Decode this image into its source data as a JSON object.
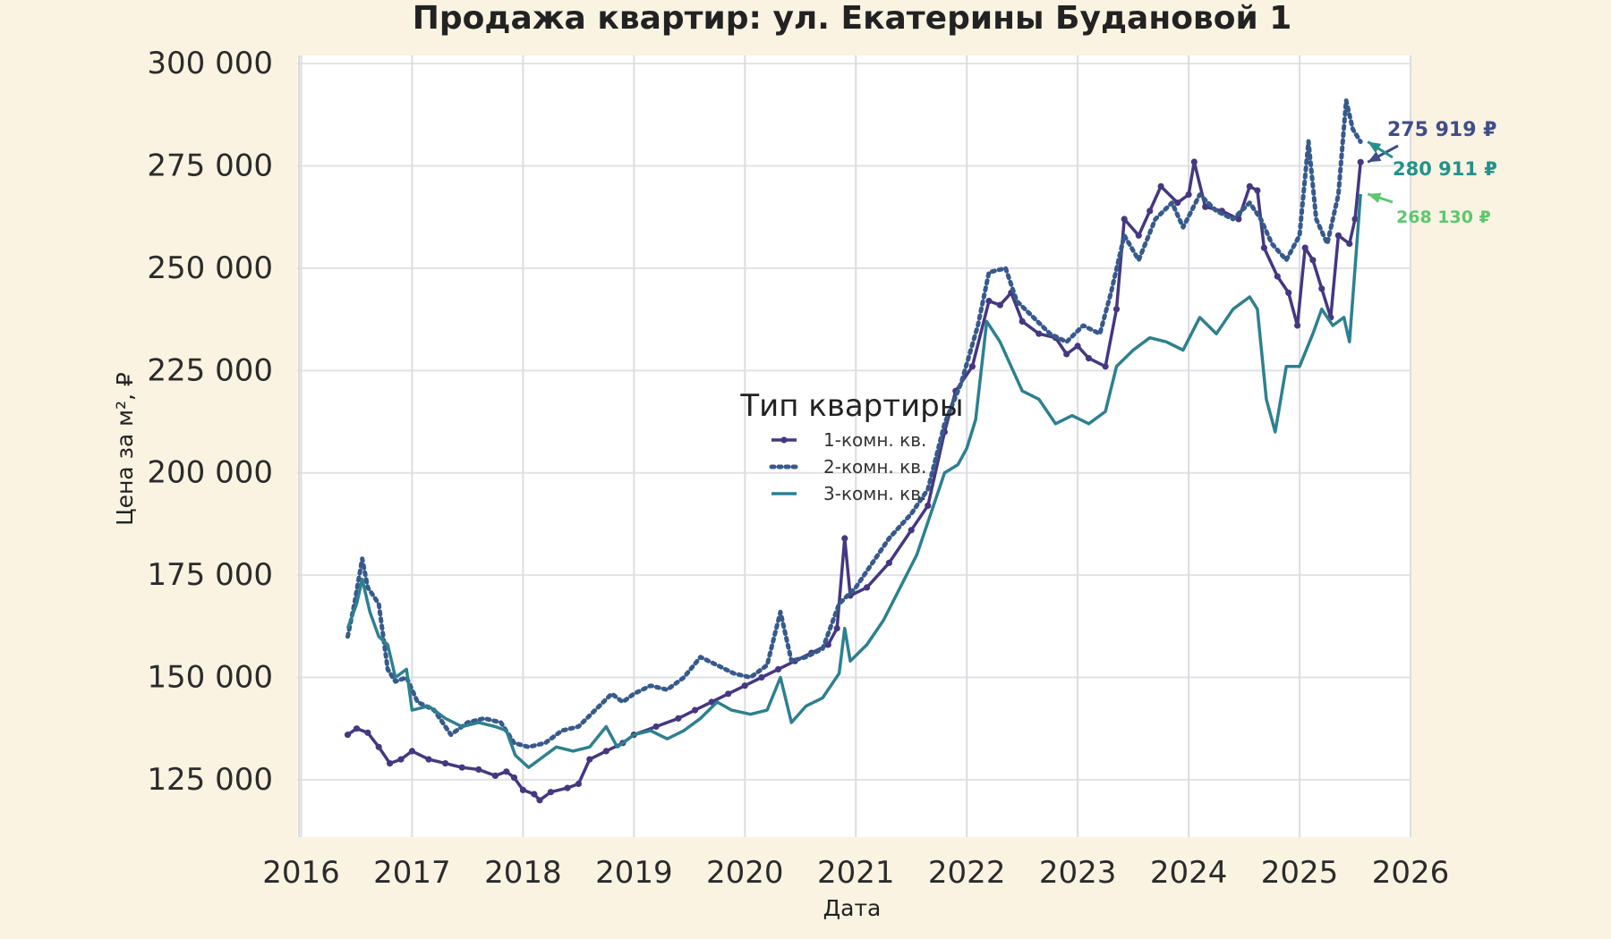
{
  "chart_data": {
    "type": "line",
    "title": "Продажа квартир: ул. Екатерины Будановой 1",
    "xlabel": "Дата",
    "ylabel": "Цена за м², ₽",
    "xlim": [
      2015.98,
      2026.0
    ],
    "ylim": [
      111000,
      302000
    ],
    "x_ticks": [
      2016,
      2017,
      2018,
      2019,
      2020,
      2021,
      2022,
      2023,
      2024,
      2025,
      2026
    ],
    "y_ticks": [
      125000,
      150000,
      175000,
      200000,
      225000,
      250000,
      275000,
      300000
    ],
    "y_tick_labels": [
      "125 000",
      "150 000",
      "175 000",
      "200 000",
      "225 000",
      "250 000",
      "275 000",
      "300 000"
    ],
    "grid": true,
    "legend": {
      "title": "Тип квартиры",
      "placement": "center"
    },
    "series": [
      {
        "name": "1-комн. кв.",
        "color": "#453781",
        "style": "line-dots",
        "points": [
          [
            2016.42,
            136000
          ],
          [
            2016.5,
            137500
          ],
          [
            2016.6,
            136500
          ],
          [
            2016.7,
            133000
          ],
          [
            2016.8,
            129000
          ],
          [
            2016.9,
            130000
          ],
          [
            2017.0,
            132000
          ],
          [
            2017.15,
            130000
          ],
          [
            2017.3,
            129000
          ],
          [
            2017.45,
            128000
          ],
          [
            2017.6,
            127500
          ],
          [
            2017.75,
            126000
          ],
          [
            2017.85,
            127000
          ],
          [
            2017.92,
            125500
          ],
          [
            2018.0,
            122500
          ],
          [
            2018.1,
            121500
          ],
          [
            2018.15,
            120000
          ],
          [
            2018.25,
            122000
          ],
          [
            2018.4,
            123000
          ],
          [
            2018.5,
            124000
          ],
          [
            2018.6,
            130000
          ],
          [
            2018.75,
            132000
          ],
          [
            2018.9,
            134000
          ],
          [
            2019.0,
            136000
          ],
          [
            2019.2,
            138000
          ],
          [
            2019.4,
            140000
          ],
          [
            2019.55,
            142000
          ],
          [
            2019.7,
            144000
          ],
          [
            2019.85,
            146000
          ],
          [
            2020.0,
            148000
          ],
          [
            2020.15,
            150000
          ],
          [
            2020.3,
            152000
          ],
          [
            2020.45,
            154000
          ],
          [
            2020.6,
            156000
          ],
          [
            2020.75,
            158000
          ],
          [
            2020.83,
            162000
          ],
          [
            2020.9,
            184000
          ],
          [
            2020.95,
            170000
          ],
          [
            2021.1,
            172000
          ],
          [
            2021.3,
            178000
          ],
          [
            2021.5,
            186000
          ],
          [
            2021.65,
            192000
          ],
          [
            2021.8,
            210000
          ],
          [
            2021.9,
            220000
          ],
          [
            2022.05,
            226000
          ],
          [
            2022.2,
            242000
          ],
          [
            2022.3,
            241000
          ],
          [
            2022.4,
            244000
          ],
          [
            2022.5,
            237000
          ],
          [
            2022.65,
            234000
          ],
          [
            2022.8,
            233000
          ],
          [
            2022.9,
            229000
          ],
          [
            2023.0,
            231000
          ],
          [
            2023.1,
            228000
          ],
          [
            2023.25,
            226000
          ],
          [
            2023.35,
            240000
          ],
          [
            2023.42,
            262000
          ],
          [
            2023.55,
            258000
          ],
          [
            2023.65,
            264000
          ],
          [
            2023.75,
            270000
          ],
          [
            2023.9,
            266000
          ],
          [
            2024.0,
            268000
          ],
          [
            2024.05,
            276000
          ],
          [
            2024.15,
            265000
          ],
          [
            2024.3,
            264000
          ],
          [
            2024.45,
            262000
          ],
          [
            2024.55,
            270000
          ],
          [
            2024.62,
            269000
          ],
          [
            2024.68,
            255000
          ],
          [
            2024.8,
            248000
          ],
          [
            2024.9,
            244000
          ],
          [
            2024.98,
            236000
          ],
          [
            2025.05,
            255000
          ],
          [
            2025.12,
            252000
          ],
          [
            2025.2,
            245000
          ],
          [
            2025.28,
            238000
          ],
          [
            2025.35,
            258000
          ],
          [
            2025.45,
            256000
          ],
          [
            2025.5,
            262000
          ],
          [
            2025.55,
            275919
          ]
        ]
      },
      {
        "name": "2-комн. кв.",
        "color": "#375a8c",
        "style": "dotted",
        "points": [
          [
            2016.42,
            160000
          ],
          [
            2016.48,
            168000
          ],
          [
            2016.55,
            179000
          ],
          [
            2016.6,
            172000
          ],
          [
            2016.7,
            168000
          ],
          [
            2016.78,
            152000
          ],
          [
            2016.85,
            149000
          ],
          [
            2016.95,
            150000
          ],
          [
            2017.05,
            144000
          ],
          [
            2017.2,
            142000
          ],
          [
            2017.35,
            136000
          ],
          [
            2017.5,
            139000
          ],
          [
            2017.65,
            140000
          ],
          [
            2017.8,
            139000
          ],
          [
            2017.92,
            134000
          ],
          [
            2018.05,
            133000
          ],
          [
            2018.2,
            134000
          ],
          [
            2018.35,
            137000
          ],
          [
            2018.5,
            138000
          ],
          [
            2018.65,
            142000
          ],
          [
            2018.8,
            146000
          ],
          [
            2018.9,
            144000
          ],
          [
            2019.0,
            146000
          ],
          [
            2019.15,
            148000
          ],
          [
            2019.3,
            147000
          ],
          [
            2019.45,
            150000
          ],
          [
            2019.6,
            155000
          ],
          [
            2019.75,
            153000
          ],
          [
            2019.9,
            151000
          ],
          [
            2020.05,
            150000
          ],
          [
            2020.2,
            153000
          ],
          [
            2020.32,
            166000
          ],
          [
            2020.42,
            154000
          ],
          [
            2020.55,
            155000
          ],
          [
            2020.7,
            157000
          ],
          [
            2020.85,
            168000
          ],
          [
            2021.0,
            172000
          ],
          [
            2021.15,
            178000
          ],
          [
            2021.3,
            184000
          ],
          [
            2021.5,
            190000
          ],
          [
            2021.65,
            196000
          ],
          [
            2021.8,
            212000
          ],
          [
            2021.95,
            222000
          ],
          [
            2022.1,
            236000
          ],
          [
            2022.2,
            249000
          ],
          [
            2022.35,
            250000
          ],
          [
            2022.45,
            242000
          ],
          [
            2022.6,
            238000
          ],
          [
            2022.75,
            234000
          ],
          [
            2022.9,
            232000
          ],
          [
            2023.05,
            236000
          ],
          [
            2023.2,
            234000
          ],
          [
            2023.3,
            244000
          ],
          [
            2023.42,
            258000
          ],
          [
            2023.55,
            252000
          ],
          [
            2023.7,
            262000
          ],
          [
            2023.85,
            266000
          ],
          [
            2023.95,
            260000
          ],
          [
            2024.1,
            268000
          ],
          [
            2024.25,
            264000
          ],
          [
            2024.4,
            262000
          ],
          [
            2024.55,
            266000
          ],
          [
            2024.65,
            262000
          ],
          [
            2024.75,
            256000
          ],
          [
            2024.88,
            252000
          ],
          [
            2025.0,
            258000
          ],
          [
            2025.08,
            281000
          ],
          [
            2025.15,
            262000
          ],
          [
            2025.25,
            256000
          ],
          [
            2025.35,
            268000
          ],
          [
            2025.42,
            291000
          ],
          [
            2025.48,
            284000
          ],
          [
            2025.55,
            280911
          ]
        ]
      },
      {
        "name": "3-комн. кв.",
        "color": "#2d8090",
        "style": "solid",
        "points": [
          [
            2016.42,
            162000
          ],
          [
            2016.5,
            168000
          ],
          [
            2016.55,
            174000
          ],
          [
            2016.62,
            166000
          ],
          [
            2016.7,
            160000
          ],
          [
            2016.78,
            158000
          ],
          [
            2016.85,
            150000
          ],
          [
            2016.95,
            152000
          ],
          [
            2017.0,
            142000
          ],
          [
            2017.15,
            143000
          ],
          [
            2017.3,
            140000
          ],
          [
            2017.45,
            138000
          ],
          [
            2017.6,
            139000
          ],
          [
            2017.75,
            138000
          ],
          [
            2017.85,
            137000
          ],
          [
            2017.93,
            131000
          ],
          [
            2018.05,
            128000
          ],
          [
            2018.15,
            130000
          ],
          [
            2018.3,
            133000
          ],
          [
            2018.45,
            132000
          ],
          [
            2018.6,
            133000
          ],
          [
            2018.75,
            138000
          ],
          [
            2018.85,
            133000
          ],
          [
            2019.0,
            136000
          ],
          [
            2019.15,
            137000
          ],
          [
            2019.3,
            135000
          ],
          [
            2019.45,
            137000
          ],
          [
            2019.6,
            140000
          ],
          [
            2019.75,
            144000
          ],
          [
            2019.88,
            142000
          ],
          [
            2020.05,
            141000
          ],
          [
            2020.2,
            142000
          ],
          [
            2020.32,
            150000
          ],
          [
            2020.42,
            139000
          ],
          [
            2020.55,
            143000
          ],
          [
            2020.7,
            145000
          ],
          [
            2020.85,
            151000
          ],
          [
            2020.9,
            162000
          ],
          [
            2020.95,
            154000
          ],
          [
            2021.1,
            158000
          ],
          [
            2021.25,
            164000
          ],
          [
            2021.4,
            172000
          ],
          [
            2021.55,
            180000
          ],
          [
            2021.7,
            192000
          ],
          [
            2021.8,
            200000
          ],
          [
            2021.92,
            202000
          ],
          [
            2022.0,
            206000
          ],
          [
            2022.08,
            213000
          ],
          [
            2022.18,
            237000
          ],
          [
            2022.3,
            232000
          ],
          [
            2022.4,
            226000
          ],
          [
            2022.5,
            220000
          ],
          [
            2022.65,
            218000
          ],
          [
            2022.8,
            212000
          ],
          [
            2022.95,
            214000
          ],
          [
            2023.1,
            212000
          ],
          [
            2023.25,
            215000
          ],
          [
            2023.35,
            226000
          ],
          [
            2023.5,
            230000
          ],
          [
            2023.65,
            233000
          ],
          [
            2023.8,
            232000
          ],
          [
            2023.95,
            230000
          ],
          [
            2024.1,
            238000
          ],
          [
            2024.25,
            234000
          ],
          [
            2024.4,
            240000
          ],
          [
            2024.55,
            243000
          ],
          [
            2024.62,
            240000
          ],
          [
            2024.7,
            218000
          ],
          [
            2024.78,
            210000
          ],
          [
            2024.88,
            226000
          ],
          [
            2025.0,
            226000
          ],
          [
            2025.12,
            234000
          ],
          [
            2025.2,
            240000
          ],
          [
            2025.3,
            236000
          ],
          [
            2025.4,
            238000
          ],
          [
            2025.45,
            232000
          ],
          [
            2025.5,
            250000
          ],
          [
            2025.55,
            268130
          ]
        ]
      }
    ],
    "end_labels": [
      {
        "text": "275 919 ₽",
        "series": "1-комн. кв.",
        "color": "#3f4d8a"
      },
      {
        "text": "280 911 ₽",
        "series": "2-комн. кв.",
        "color": "#23928a"
      },
      {
        "text": "268 130 ₽",
        "series": "3-комн. кв.",
        "color": "#5cc86e"
      }
    ]
  }
}
